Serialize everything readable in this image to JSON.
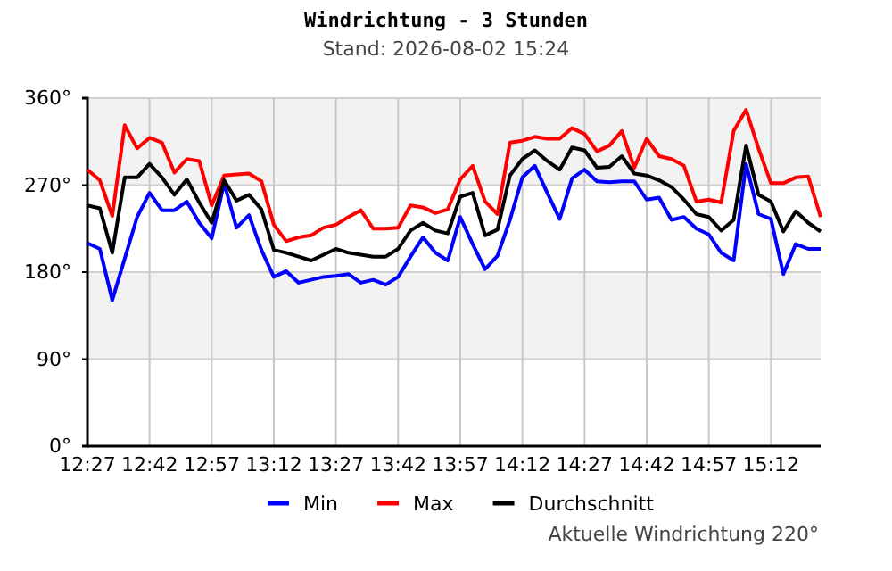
{
  "chart_data": {
    "type": "line",
    "title": "Windrichtung - 3 Stunden",
    "subtitle": "Stand: 2026-08-02 15:24",
    "annotations": [
      "Aktuelle Windrichtung 220°"
    ],
    "x": [
      12.45,
      12.5,
      12.55,
      12.6,
      12.65,
      12.7,
      12.75,
      12.8,
      12.85,
      12.9,
      12.95,
      13,
      13.05,
      13.1,
      13.15,
      13.2,
      13.25,
      13.3,
      13.35,
      13.4,
      13.45,
      13.5,
      13.55,
      13.6,
      13.65,
      13.7,
      13.75,
      13.8,
      13.85,
      13.9,
      13.95,
      14,
      14.05,
      14.1,
      14.15,
      14.2,
      14.25,
      14.3,
      14.35,
      14.4,
      14.45,
      14.5,
      14.55,
      14.6,
      14.65,
      14.7,
      14.75,
      14.8,
      14.85,
      14.9,
      14.95,
      15,
      15.05,
      15.1,
      15.15,
      15.2,
      15.25,
      15.3,
      15.35,
      15.4
    ],
    "series": [
      {
        "name": "Min",
        "color": "#0000ff",
        "values": [
          210,
          204,
          151,
          194,
          237,
          262,
          244,
          244,
          253,
          231,
          215,
          272,
          226,
          239,
          203,
          175,
          181,
          169,
          172,
          175,
          176,
          178,
          169,
          172,
          167,
          175,
          196,
          216,
          200,
          192,
          237,
          209,
          183,
          197,
          234,
          278,
          290,
          262,
          235,
          277,
          286,
          274,
          273,
          274,
          274,
          255,
          257,
          234,
          237,
          225,
          219,
          200,
          192,
          292,
          240,
          235,
          178,
          209,
          204,
          204
        ]
      },
      {
        "name": "Max",
        "color": "#ff0000",
        "values": [
          286,
          275,
          238,
          332,
          308,
          319,
          314,
          283,
          297,
          295,
          249,
          280,
          281,
          282,
          274,
          229,
          212,
          216,
          218,
          226,
          229,
          237,
          244,
          225,
          225,
          226,
          249,
          247,
          241,
          245,
          276,
          290,
          253,
          240,
          314,
          316,
          320,
          318,
          318,
          329,
          323,
          305,
          311,
          326,
          288,
          318,
          300,
          297,
          290,
          253,
          255,
          252,
          326,
          348,
          308,
          272,
          272,
          278,
          279,
          237
        ]
      },
      {
        "name": "Durchschnitt",
        "color": "#000000",
        "values": [
          249,
          246,
          200,
          278,
          278,
          292,
          278,
          260,
          276,
          252,
          231,
          275,
          254,
          260,
          245,
          203,
          200,
          196,
          192,
          198,
          204,
          200,
          198,
          196,
          196,
          204,
          223,
          231,
          223,
          220,
          258,
          262,
          218,
          224,
          280,
          297,
          306,
          295,
          286,
          309,
          306,
          288,
          289,
          300,
          282,
          280,
          275,
          268,
          255,
          240,
          237,
          223,
          234,
          311,
          260,
          253,
          222,
          243,
          231,
          222
        ]
      }
    ],
    "xlim": [
      12.45,
      15.4
    ],
    "xticks": [
      {
        "value": 12.45,
        "label": "12:27"
      },
      {
        "value": 12.7,
        "label": "12:42"
      },
      {
        "value": 12.95,
        "label": "12:57"
      },
      {
        "value": 13.2,
        "label": "13:12"
      },
      {
        "value": 13.45,
        "label": "13:27"
      },
      {
        "value": 13.7,
        "label": "13:42"
      },
      {
        "value": 13.95,
        "label": "13:57"
      },
      {
        "value": 14.2,
        "label": "14:12"
      },
      {
        "value": 14.45,
        "label": "14:27"
      },
      {
        "value": 14.7,
        "label": "14:42"
      },
      {
        "value": 14.95,
        "label": "14:57"
      },
      {
        "value": 15.2,
        "label": "15:12"
      }
    ],
    "ylim": [
      0,
      360
    ],
    "yticks": [
      {
        "value": 0,
        "label": "0°"
      },
      {
        "value": 90,
        "label": "90°"
      },
      {
        "value": 180,
        "label": "180°"
      },
      {
        "value": 270,
        "label": "270°"
      },
      {
        "value": 360,
        "label": "360°"
      }
    ],
    "bands": [
      {
        "axis": "y",
        "from": 90,
        "to": 180,
        "color": "#f2f2f2"
      },
      {
        "axis": "y",
        "from": 270,
        "to": 360,
        "color": "#f2f2f2"
      }
    ],
    "grid": true,
    "legend": "bottom",
    "marker": "none",
    "line_style": "solid"
  }
}
